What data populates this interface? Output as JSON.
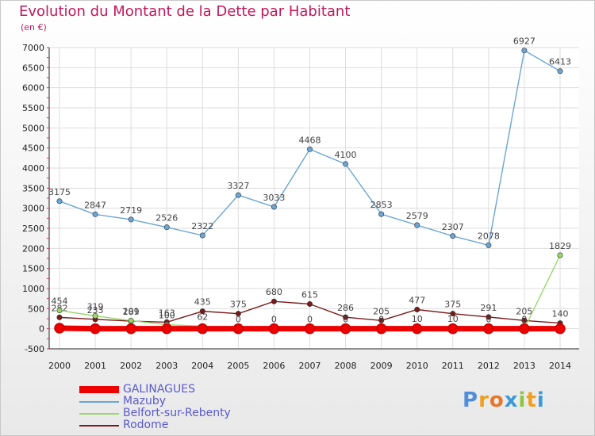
{
  "header": {
    "title": "Evolution du Montant de la Dette par Habitant",
    "subtitle": "(en €)"
  },
  "logo": {
    "letters": [
      "P",
      "r",
      "o",
      "x",
      "i",
      "t",
      "i"
    ],
    "colors": [
      "#4f8fd9",
      "#f0a020",
      "#e8762a",
      "#3a9ad9",
      "#8cc63f",
      "#f0a020",
      "#3a9ad9"
    ]
  },
  "chart_data": {
    "type": "line",
    "title": "Evolution du Montant de la Dette par Habitant",
    "ylabel": "(en €)",
    "x": [
      2000,
      2001,
      2002,
      2003,
      2004,
      2005,
      2006,
      2007,
      2008,
      2009,
      2010,
      2011,
      2012,
      2013,
      2014
    ],
    "ylim": [
      -500,
      7000
    ],
    "yticks": [
      -500,
      0,
      500,
      1000,
      1500,
      2000,
      2500,
      3000,
      3500,
      4000,
      4500,
      5000,
      5500,
      6000,
      6500,
      7000
    ],
    "grid": true,
    "legend_position": "bottom-left",
    "series": [
      {
        "name": "GALINAGUES",
        "color": "#ee0000",
        "values": [
          13,
          0,
          0,
          0,
          0,
          0,
          0,
          0,
          0,
          0,
          0,
          0,
          0,
          0,
          0
        ]
      },
      {
        "name": "Mazuby",
        "color": "#6aa6d6",
        "values": [
          3175,
          2847,
          2719,
          2526,
          2322,
          3327,
          3033,
          4468,
          4100,
          2853,
          2579,
          2307,
          2078,
          6927,
          6413
        ]
      },
      {
        "name": "Belfort-sur-Rebenty",
        "color": "#9ad86a",
        "values": [
          454,
          319,
          201,
          100,
          62,
          0,
          0,
          0,
          0,
          0,
          10,
          10,
          0,
          0,
          1829
        ]
      },
      {
        "name": "Rodome",
        "color": "#7a1a1a",
        "values": [
          282,
          233,
          189,
          163,
          435,
          375,
          680,
          615,
          286,
          205,
          477,
          375,
          291,
          205,
          140
        ]
      }
    ]
  }
}
